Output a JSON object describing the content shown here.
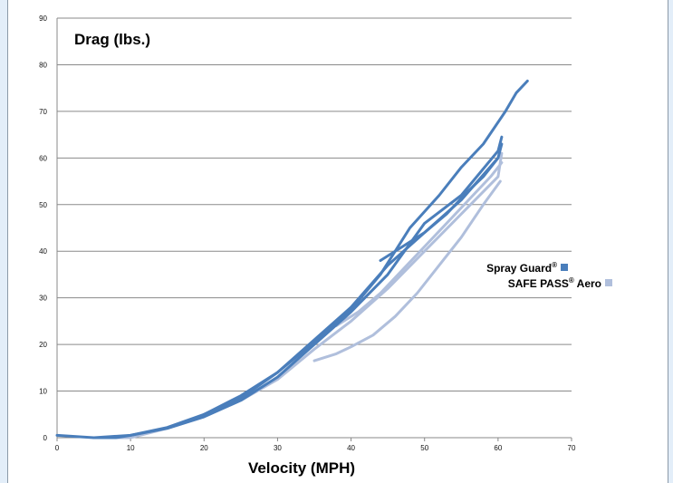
{
  "chart_data": {
    "type": "line",
    "title": "Drag (lbs.)",
    "xlabel": "Velocity (MPH)",
    "ylabel": "Drag (lbs.)",
    "xlim": [
      0,
      70
    ],
    "ylim": [
      0,
      90
    ],
    "x_ticks": [
      "0",
      "10",
      "20",
      "30",
      "40",
      "50",
      "60",
      "70"
    ],
    "y_ticks": [
      "0",
      "10",
      "20",
      "30",
      "40",
      "50",
      "60",
      "70",
      "80",
      "90"
    ],
    "grid": "horizontal",
    "legend_position": "right",
    "series": [
      {
        "name": "Spray Guard®",
        "name_main": "Spray Guard",
        "name_mark": "®",
        "color": "#4a7ebb",
        "runs": [
          [
            [
              0,
              0.5
            ],
            [
              5,
              0
            ],
            [
              8,
              0
            ],
            [
              10,
              0.5
            ],
            [
              15,
              2
            ],
            [
              20,
              4.5
            ],
            [
              25,
              8
            ],
            [
              30,
              13
            ],
            [
              35,
              20
            ],
            [
              40,
              27
            ],
            [
              45,
              35
            ],
            [
              50,
              46
            ],
            [
              55,
              52
            ],
            [
              60,
              61.5
            ],
            [
              60.5,
              64.5
            ]
          ],
          [
            [
              5,
              0
            ],
            [
              10,
              0.5
            ],
            [
              15,
              2.2
            ],
            [
              20,
              5
            ],
            [
              25,
              9
            ],
            [
              30,
              14
            ],
            [
              35,
              21
            ],
            [
              40,
              28
            ],
            [
              45,
              37
            ],
            [
              50,
              44
            ],
            [
              55,
              51
            ],
            [
              60,
              60
            ],
            [
              60.5,
              63
            ]
          ],
          [
            [
              44,
              38
            ],
            [
              47,
              41
            ],
            [
              50,
              44
            ],
            [
              53,
              48
            ],
            [
              56,
              53
            ],
            [
              58,
              56
            ],
            [
              60,
              60
            ]
          ],
          [
            [
              20,
              5
            ],
            [
              25,
              8.5
            ],
            [
              30,
              14
            ],
            [
              35,
              20.5
            ],
            [
              40,
              27.5
            ],
            [
              44,
              35
            ],
            [
              48,
              45
            ],
            [
              52,
              52
            ],
            [
              55,
              58
            ],
            [
              58,
              63
            ],
            [
              61,
              70
            ],
            [
              62.5,
              74
            ],
            [
              64,
              76.5
            ]
          ]
        ]
      },
      {
        "name": "SAFE PASS® Aero",
        "name_main": "SAFE PASS",
        "name_mark": "®",
        "name_tail": " Aero",
        "color": "#b0bfdc",
        "runs": [
          [
            [
              5,
              0
            ],
            [
              10,
              0
            ],
            [
              15,
              2
            ],
            [
              20,
              4.5
            ],
            [
              25,
              8
            ],
            [
              30,
              12.5
            ],
            [
              35,
              19
            ],
            [
              40,
              25
            ],
            [
              45,
              32
            ],
            [
              50,
              40
            ],
            [
              55,
              48
            ],
            [
              60,
              56
            ],
            [
              60.5,
              61
            ]
          ],
          [
            [
              35,
              16.5
            ],
            [
              38,
              18
            ],
            [
              40,
              19.5
            ],
            [
              43,
              22
            ],
            [
              46,
              26
            ],
            [
              49,
              31
            ],
            [
              52,
              37
            ],
            [
              55,
              43
            ],
            [
              58,
              50
            ],
            [
              60.3,
              55
            ]
          ],
          [
            [
              38,
              24
            ],
            [
              41,
              27
            ],
            [
              44,
              31
            ],
            [
              47,
              36
            ],
            [
              50,
              41
            ],
            [
              53,
              46
            ],
            [
              56,
              51
            ],
            [
              59,
              56
            ],
            [
              60.5,
              59
            ]
          ]
        ]
      }
    ]
  }
}
